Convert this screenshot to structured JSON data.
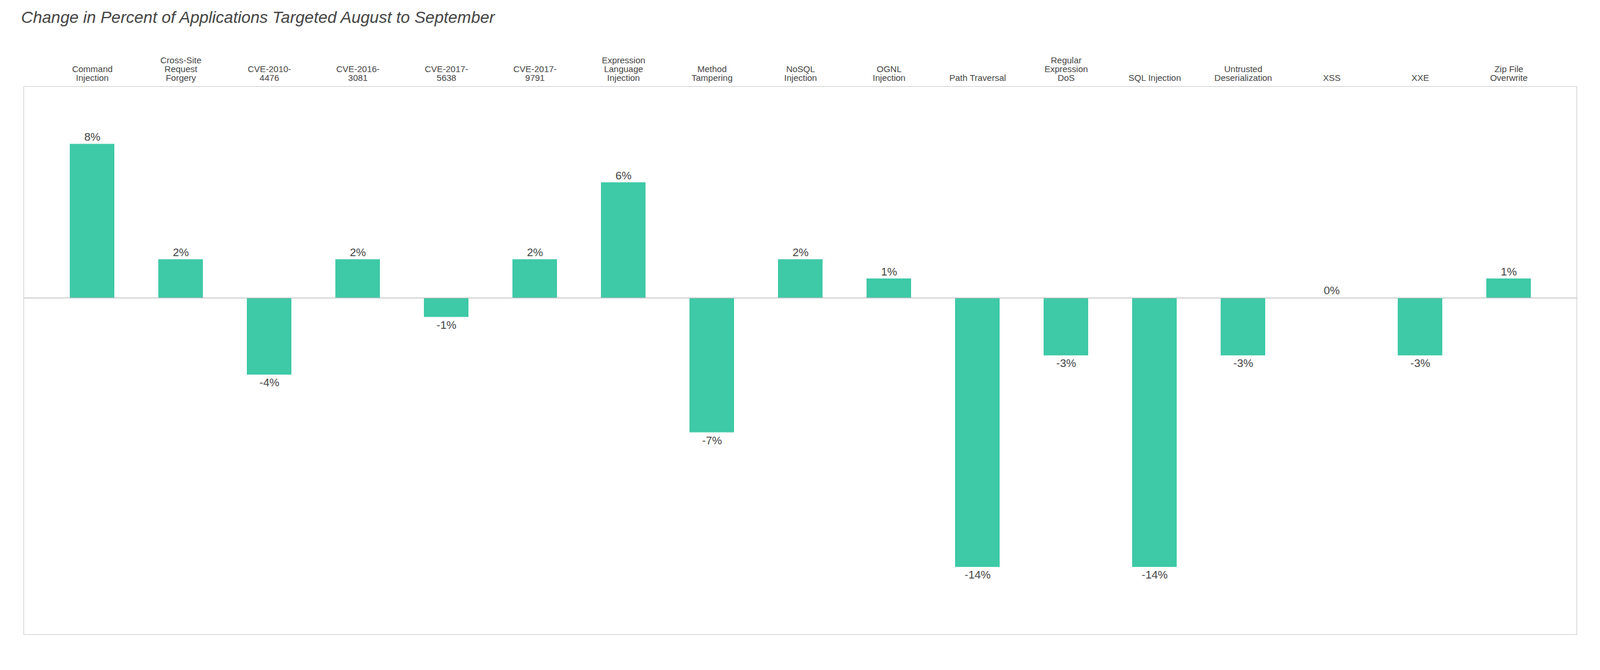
{
  "chart_data": {
    "type": "bar",
    "title": "Change in Percent of Applications Targeted August to September",
    "categories": [
      "Command\nInjection",
      "Cross-Site\nRequest\nForgery",
      "CVE-2010-\n4476",
      "CVE-2016-\n3081",
      "CVE-2017-\n5638",
      "CVE-2017-\n9791",
      "Expression\nLanguage\nInjection",
      "Method\nTampering",
      "NoSQL\nInjection",
      "OGNL\nInjection",
      "Path Traversal",
      "Regular\nExpression\nDoS",
      "SQL Injection",
      "Untrusted\nDeserialization",
      "XSS",
      "XXE",
      "Zip File\nOverwrite"
    ],
    "values": [
      8,
      2,
      -4,
      2,
      -1,
      2,
      6,
      -7,
      2,
      1,
      -14,
      -3,
      -14,
      -3,
      0,
      -3,
      1
    ],
    "value_labels": [
      "8%",
      "2%",
      "-4%",
      "2%",
      "-1%",
      "2%",
      "6%",
      "-7%",
      "2%",
      "1%",
      "-14%",
      "-3%",
      "-14%",
      "-3%",
      "0%",
      "-3%",
      "1%"
    ],
    "color": "#3EC9A7",
    "ylim": [
      -17.5,
      11
    ],
    "data_labels": true,
    "tick_labels": "x",
    "grid": false
  }
}
